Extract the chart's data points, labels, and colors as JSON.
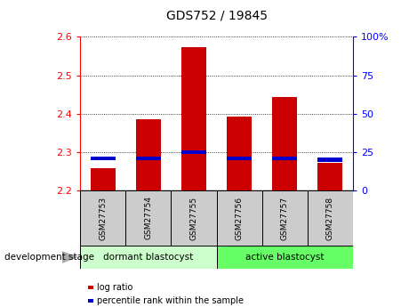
{
  "title": "GDS752 / 19845",
  "samples": [
    "GSM27753",
    "GSM27754",
    "GSM27755",
    "GSM27756",
    "GSM27757",
    "GSM27758"
  ],
  "log_ratio_top": [
    2.257,
    2.385,
    2.572,
    2.392,
    2.443,
    2.272
  ],
  "log_ratio_base": 2.2,
  "percentile_values": [
    21,
    21,
    25,
    21,
    21,
    20
  ],
  "percentile_color": "#0000cc",
  "bar_color": "#cc0000",
  "ylim_left": [
    2.2,
    2.6
  ],
  "ylim_right": [
    0,
    100
  ],
  "yticks_left": [
    2.2,
    2.3,
    2.4,
    2.5,
    2.6
  ],
  "yticks_right": [
    0,
    25,
    50,
    75,
    100
  ],
  "ytick_labels_right": [
    "0",
    "25",
    "50",
    "75",
    "100%"
  ],
  "group1_label": "dormant blastocyst",
  "group2_label": "active blastocyst",
  "stage_label": "development stage",
  "legend1": "log ratio",
  "legend2": "percentile rank within the sample",
  "background_color": "#ffffff",
  "group_label_bg1": "#ccffcc",
  "group_label_bg2": "#66ff66",
  "sample_bg_color": "#cccccc",
  "bar_width": 0.55
}
